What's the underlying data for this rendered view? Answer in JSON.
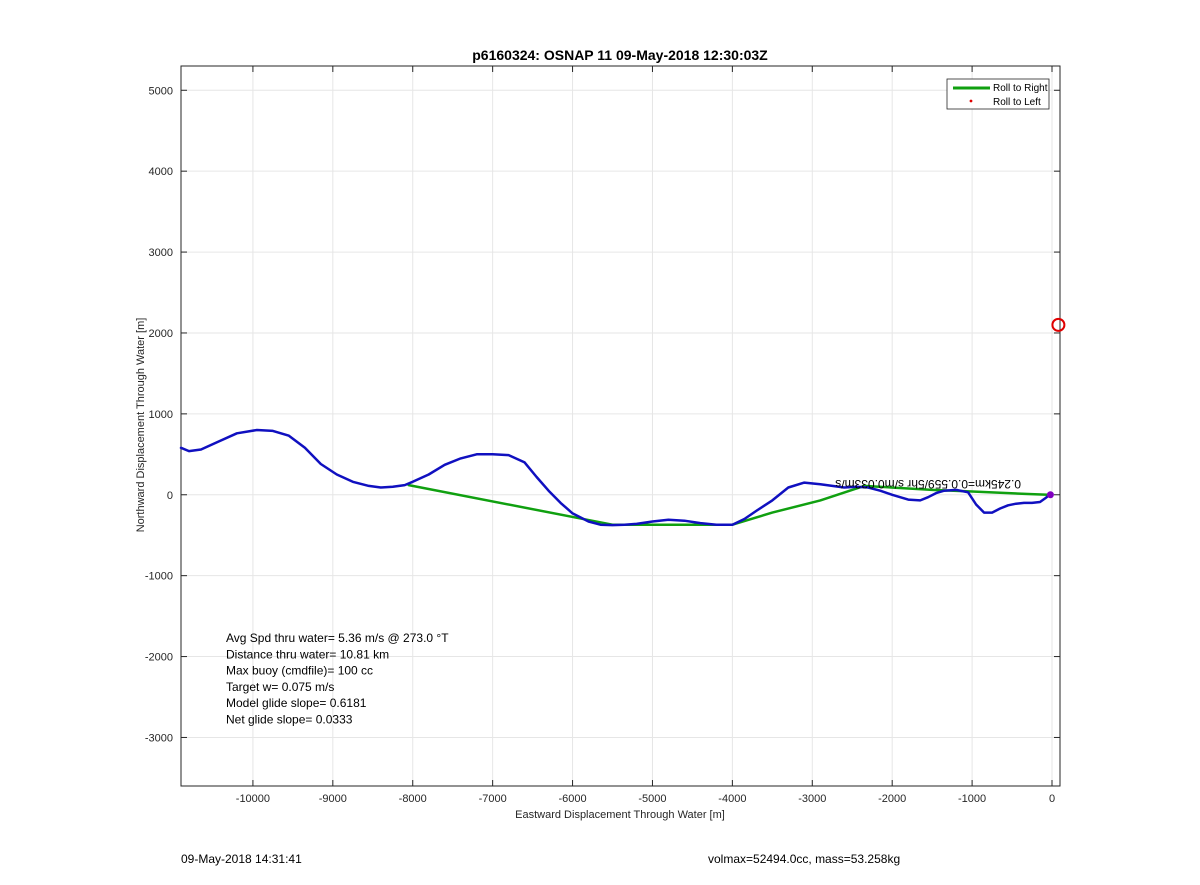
{
  "chart_data": {
    "type": "line",
    "title": "p6160324: OSNAP 11 09-May-2018 12:30:03Z",
    "xlabel": "Eastward Displacement Through Water [m]",
    "ylabel": "Northward Displacement Through Water [m]",
    "xlim": [
      -10900,
      100
    ],
    "ylim": [
      -3600,
      5300
    ],
    "xticks": [
      -10000,
      -9000,
      -8000,
      -7000,
      -6000,
      -5000,
      -4000,
      -3000,
      -2000,
      -1000,
      0
    ],
    "yticks": [
      -3000,
      -2000,
      -1000,
      0,
      1000,
      2000,
      3000,
      4000,
      5000
    ],
    "grid": true,
    "legend_position": "top-right",
    "legend": [
      "Roll to Right",
      "Roll to Left"
    ],
    "series": [
      {
        "name": "track",
        "color": "#1010c0",
        "x": [
          -10900,
          -10800,
          -10650,
          -10450,
          -10200,
          -9950,
          -9750,
          -9550,
          -9350,
          -9150,
          -8950,
          -8750,
          -8550,
          -8400,
          -8250,
          -8100,
          -8000,
          -7800,
          -7600,
          -7400,
          -7200,
          -7000,
          -6800,
          -6600,
          -6450,
          -6300,
          -6150,
          -6000,
          -5800,
          -5650,
          -5500,
          -5350,
          -5200,
          -5000,
          -4800,
          -4600,
          -4400,
          -4200,
          -4000,
          -3850,
          -3700,
          -3500,
          -3300,
          -3100,
          -2900,
          -2750,
          -2600,
          -2450,
          -2300,
          -2150,
          -2000,
          -1800,
          -1650,
          -1550,
          -1450,
          -1350,
          -1200,
          -1050,
          -950,
          -850,
          -750,
          -650,
          -550,
          -450,
          -350,
          -250,
          -150,
          -80,
          -30
        ],
        "y": [
          580,
          540,
          560,
          650,
          760,
          800,
          790,
          730,
          580,
          380,
          250,
          160,
          110,
          90,
          100,
          120,
          160,
          250,
          370,
          450,
          500,
          500,
          490,
          400,
          220,
          50,
          -100,
          -230,
          -330,
          -370,
          -375,
          -370,
          -360,
          -330,
          -310,
          -320,
          -350,
          -370,
          -370,
          -300,
          -200,
          -70,
          90,
          150,
          130,
          110,
          90,
          100,
          90,
          50,
          0,
          -60,
          -70,
          -30,
          20,
          50,
          60,
          30,
          -120,
          -220,
          -220,
          -170,
          -130,
          -110,
          -100,
          -100,
          -90,
          -40,
          0
        ]
      },
      {
        "name": "Roll to Right",
        "color": "#10a010",
        "x": [
          -8050,
          -5500,
          -4800,
          -4000,
          -3500,
          -2900,
          -2350,
          -1500,
          -1000,
          -300,
          -50
        ],
        "y": [
          120,
          -370,
          -370,
          -370,
          -220,
          -70,
          110,
          60,
          40,
          10,
          0
        ]
      }
    ],
    "markers": [
      {
        "label": "Roll to Left",
        "x": 80,
        "y": 2100,
        "color": "#e00000",
        "shape": "circle"
      },
      {
        "label": "end",
        "x": -20,
        "y": 0,
        "color": "#8000c0",
        "shape": "star"
      }
    ],
    "annotations": [
      "Avg Spd thru water=  5.36 m/s @ 273.0 °T",
      "Distance thru water= 10.81 km",
      "Max buoy (cmdfile)= 100 cc",
      "Target w= 0.075 m/s",
      "Model glide slope= 0.6181",
      "Net glide slope= 0.0333"
    ],
    "rotated_label": "0.245km=0.0.559/5hr s/m0.033m/s"
  },
  "footer": {
    "timestamp": "09-May-2018 14:31:41",
    "mass_info": "volmax=52494.0cc, mass=53.258kg"
  }
}
